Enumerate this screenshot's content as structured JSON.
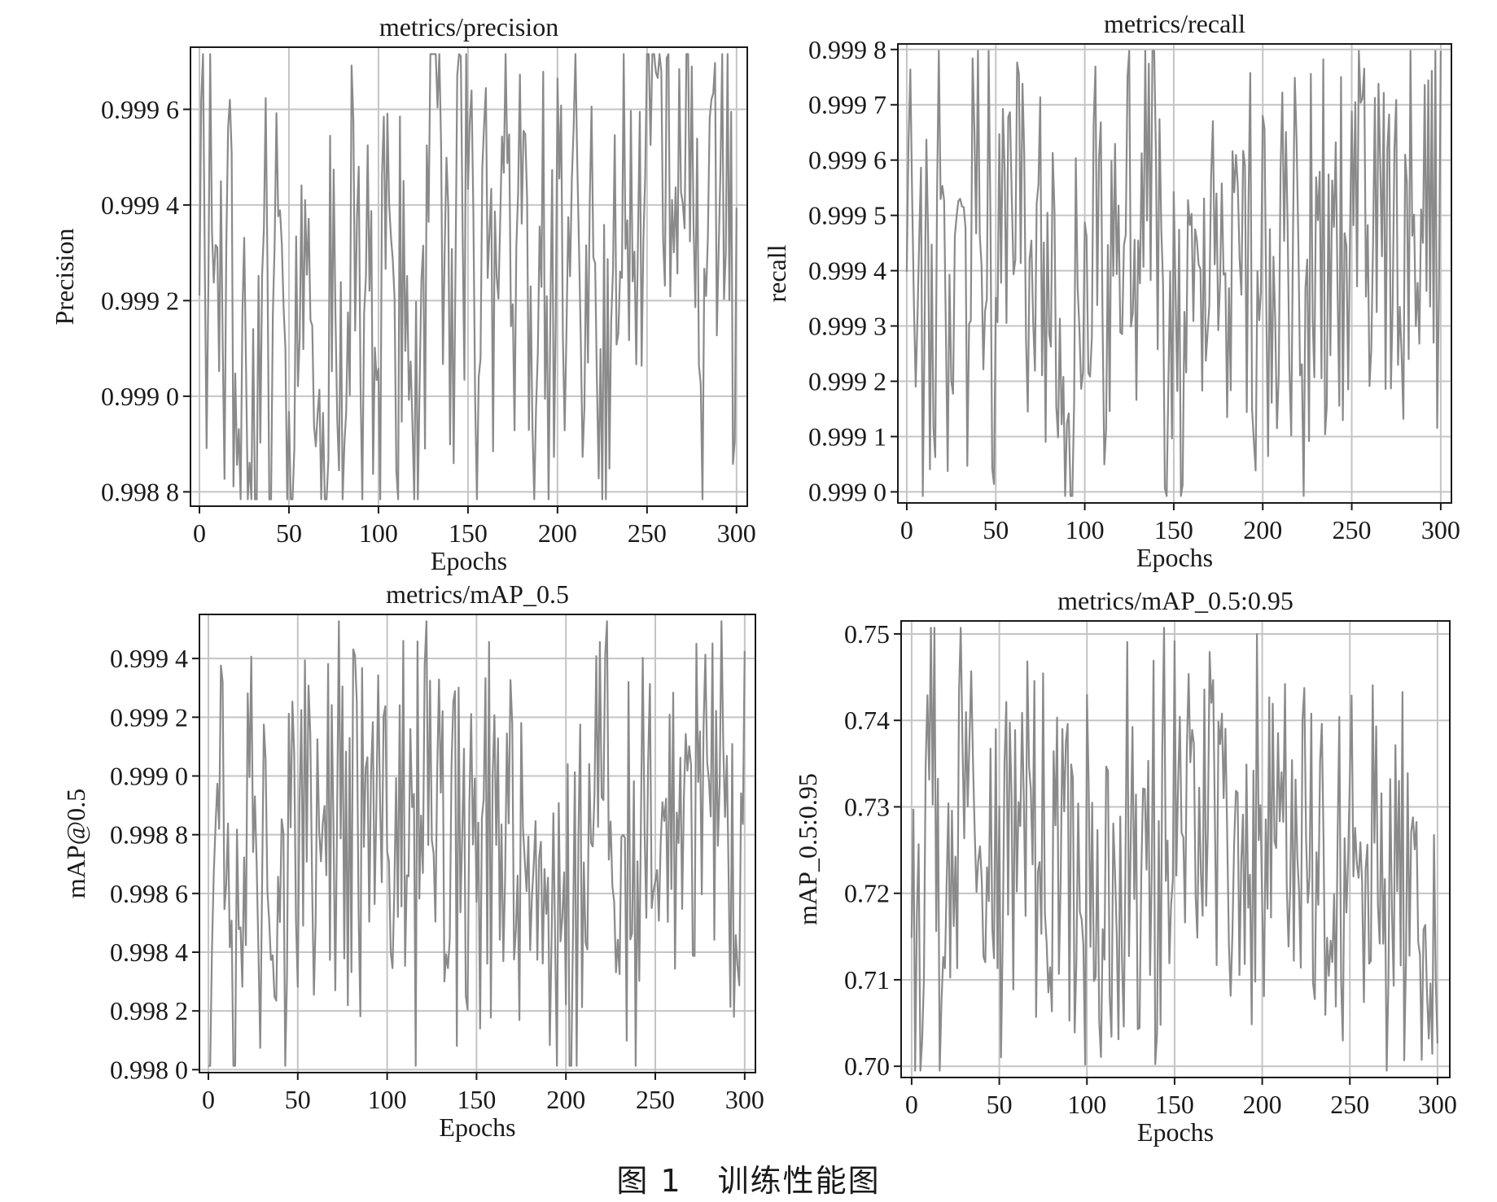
{
  "figure": {
    "caption_number": "图 1",
    "caption_text": "训练性能图"
  },
  "colors": {
    "line": "#8a8a8a",
    "grid": "#c4c4c4",
    "frame": "#1a1a1a",
    "text": "#1a1a1a"
  },
  "chart_data": [
    {
      "type": "line",
      "title": "metrics/precision",
      "xlabel": "Epochs",
      "ylabel": "Precision",
      "xlim": [
        -5,
        306
      ],
      "ylim": [
        0.99877,
        0.99973
      ],
      "x_ticks": [
        0,
        50,
        100,
        150,
        200,
        250,
        300
      ],
      "x_tick_labels": [
        "0",
        "50",
        "100",
        "150",
        "200",
        "250",
        "300"
      ],
      "y_ticks": [
        0.9988,
        0.999,
        0.9992,
        0.9994,
        0.9996
      ],
      "y_tick_labels": [
        "0.998 8",
        "0.999 0",
        "0.999 2",
        "0.999 4",
        "0.999 6"
      ],
      "grid": true,
      "seed": 11,
      "anchors": [
        [
          0,
          0.99939
        ],
        [
          2,
          0.99964
        ],
        [
          4,
          0.99905
        ],
        [
          6,
          0.99962
        ],
        [
          8,
          0.9991
        ],
        [
          10,
          0.99957
        ],
        [
          13,
          0.99895
        ],
        [
          16,
          0.99952
        ],
        [
          19,
          0.99905
        ],
        [
          22,
          0.99885
        ],
        [
          25,
          0.9994
        ],
        [
          28,
          0.99885
        ],
        [
          32,
          0.999
        ],
        [
          36,
          0.99946
        ],
        [
          40,
          0.9988
        ],
        [
          45,
          0.9993
        ],
        [
          50,
          0.99882
        ],
        [
          55,
          0.9991
        ],
        [
          60,
          0.9995
        ],
        [
          65,
          0.9988
        ],
        [
          70,
          0.9989
        ],
        [
          75,
          0.99944
        ],
        [
          80,
          0.99885
        ],
        [
          85,
          0.9996
        ],
        [
          90,
          0.999
        ],
        [
          95,
          0.9993
        ],
        [
          100,
          0.9988
        ],
        [
          105,
          0.9996
        ],
        [
          110,
          0.999
        ],
        [
          115,
          0.9994
        ],
        [
          120,
          0.9988
        ],
        [
          125,
          0.9991
        ],
        [
          130,
          0.99958
        ],
        [
          135,
          0.99965
        ],
        [
          140,
          0.999
        ],
        [
          145,
          0.99963
        ],
        [
          150,
          0.99945
        ],
        [
          155,
          0.9989
        ],
        [
          160,
          0.99958
        ],
        [
          165,
          0.9989
        ],
        [
          170,
          0.9996
        ],
        [
          175,
          0.9992
        ],
        [
          180,
          0.99945
        ],
        [
          185,
          0.9989
        ],
        [
          190,
          0.99956
        ],
        [
          195,
          0.999
        ],
        [
          200,
          0.99961
        ],
        [
          205,
          0.999
        ],
        [
          210,
          0.99946
        ],
        [
          215,
          0.9989
        ],
        [
          220,
          0.9994
        ],
        [
          225,
          0.999
        ],
        [
          230,
          0.9991
        ],
        [
          235,
          0.9995
        ],
        [
          240,
          0.999
        ],
        [
          245,
          0.9993
        ],
        [
          250,
          0.99945
        ],
        [
          255,
          0.9997
        ],
        [
          260,
          0.9992
        ],
        [
          265,
          0.99945
        ],
        [
          270,
          0.9995
        ],
        [
          275,
          0.9996
        ],
        [
          280,
          0.9989
        ],
        [
          285,
          0.9993
        ],
        [
          290,
          0.9994
        ],
        [
          295,
          0.99965
        ],
        [
          298,
          0.9992
        ],
        [
          300,
          0.9992
        ]
      ]
    },
    {
      "type": "line",
      "title": "metrics/recall",
      "xlabel": "Epochs",
      "ylabel": "recall",
      "xlim": [
        -5,
        306
      ],
      "ylim": [
        0.99898,
        0.99981
      ],
      "x_ticks": [
        0,
        50,
        100,
        150,
        200,
        250,
        300
      ],
      "x_tick_labels": [
        "0",
        "50",
        "100",
        "150",
        "200",
        "250",
        "300"
      ],
      "y_ticks": [
        0.999,
        0.9991,
        0.9992,
        0.9993,
        0.9994,
        0.9995,
        0.9996,
        0.9997,
        0.9998
      ],
      "y_tick_labels": [
        "0.999 0",
        "0.999 1",
        "0.999 2",
        "0.999 3",
        "0.999 4",
        "0.999 5",
        "0.999 6",
        "0.999 7",
        "0.999 8"
      ],
      "grid": true,
      "seed": 23,
      "anchors": [
        [
          0,
          0.99955
        ],
        [
          3,
          0.99968
        ],
        [
          5,
          0.99935
        ],
        [
          7,
          0.99978
        ],
        [
          9,
          0.9992
        ],
        [
          12,
          0.9995
        ],
        [
          15,
          0.9991
        ],
        [
          18,
          0.99965
        ],
        [
          22,
          0.99925
        ],
        [
          26,
          0.99945
        ],
        [
          30,
          0.99965
        ],
        [
          34,
          0.9993
        ],
        [
          38,
          0.99955
        ],
        [
          42,
          0.9994
        ],
        [
          46,
          0.9997
        ],
        [
          50,
          0.99915
        ],
        [
          55,
          0.9996
        ],
        [
          60,
          0.9994
        ],
        [
          65,
          0.99975
        ],
        [
          70,
          0.9992
        ],
        [
          75,
          0.9995
        ],
        [
          80,
          0.9993
        ],
        [
          85,
          0.99935
        ],
        [
          90,
          0.9991
        ],
        [
          95,
          0.9995
        ],
        [
          100,
          0.9993
        ],
        [
          105,
          0.9996
        ],
        [
          110,
          0.9992
        ],
        [
          115,
          0.9995
        ],
        [
          120,
          0.9994
        ],
        [
          125,
          0.9996
        ],
        [
          130,
          0.9994
        ],
        [
          135,
          0.99965
        ],
        [
          140,
          0.9995
        ],
        [
          145,
          0.9993
        ],
        [
          150,
          0.9994
        ],
        [
          155,
          0.9992
        ],
        [
          160,
          0.9995
        ],
        [
          165,
          0.9993
        ],
        [
          170,
          0.99945
        ],
        [
          175,
          0.9995
        ],
        [
          180,
          0.9993
        ],
        [
          185,
          0.9996
        ],
        [
          190,
          0.9994
        ],
        [
          195,
          0.9993
        ],
        [
          200,
          0.99955
        ],
        [
          205,
          0.9992
        ],
        [
          210,
          0.9995
        ],
        [
          215,
          0.99935
        ],
        [
          220,
          0.99945
        ],
        [
          225,
          0.9993
        ],
        [
          230,
          0.9995
        ],
        [
          235,
          0.9994
        ],
        [
          240,
          0.9996
        ],
        [
          245,
          0.9993
        ],
        [
          250,
          0.9995
        ],
        [
          255,
          0.9996
        ],
        [
          260,
          0.9994
        ],
        [
          265,
          0.99965
        ],
        [
          270,
          0.99935
        ],
        [
          275,
          0.99955
        ],
        [
          280,
          0.9994
        ],
        [
          285,
          0.9996
        ],
        [
          290,
          0.9993
        ],
        [
          295,
          0.99955
        ],
        [
          300,
          0.9996
        ]
      ]
    },
    {
      "type": "line",
      "title": "metrics/mAP_0.5",
      "xlabel": "Epochs",
      "ylabel": "mAP@0.5",
      "xlim": [
        -5,
        306
      ],
      "ylim": [
        0.99799,
        0.99955
      ],
      "x_ticks": [
        0,
        50,
        100,
        150,
        200,
        250,
        300
      ],
      "x_tick_labels": [
        "0",
        "50",
        "100",
        "150",
        "200",
        "250",
        "300"
      ],
      "y_ticks": [
        0.998,
        0.9982,
        0.9984,
        0.9986,
        0.9988,
        0.999,
        0.9992,
        0.9994
      ],
      "y_tick_labels": [
        "0.998 0",
        "0.998 2",
        "0.998 4",
        "0.998 6",
        "0.998 8",
        "0.999 0",
        "0.999 2",
        "0.999 4"
      ],
      "grid": true,
      "seed": 37,
      "anchors": [
        [
          0,
          0.99805
        ],
        [
          2,
          0.99865
        ],
        [
          4,
          0.9986
        ],
        [
          5,
          0.99945
        ],
        [
          8,
          0.9989
        ],
        [
          11,
          0.999
        ],
        [
          14,
          0.9984
        ],
        [
          18,
          0.9988
        ],
        [
          22,
          0.99885
        ],
        [
          26,
          0.9989
        ],
        [
          30,
          0.9988
        ],
        [
          35,
          0.99875
        ],
        [
          40,
          0.9987
        ],
        [
          45,
          0.9988
        ],
        [
          50,
          0.9988
        ],
        [
          55,
          0.99885
        ],
        [
          60,
          0.99875
        ],
        [
          65,
          0.999
        ],
        [
          70,
          0.9988
        ],
        [
          75,
          0.99885
        ],
        [
          80,
          0.9987
        ],
        [
          85,
          0.9989
        ],
        [
          90,
          0.9988
        ],
        [
          95,
          0.9988
        ],
        [
          100,
          0.9987
        ],
        [
          105,
          0.9989
        ],
        [
          110,
          0.9988
        ],
        [
          115,
          0.99885
        ],
        [
          120,
          0.9987
        ],
        [
          125,
          0.9988
        ],
        [
          130,
          0.99885
        ],
        [
          135,
          0.99875
        ],
        [
          140,
          0.9988
        ],
        [
          145,
          0.9987
        ],
        [
          150,
          0.9986
        ],
        [
          155,
          0.9987
        ],
        [
          160,
          0.9988
        ],
        [
          165,
          0.99875
        ],
        [
          170,
          0.9988
        ],
        [
          175,
          0.9987
        ],
        [
          180,
          0.9988
        ],
        [
          185,
          0.9986
        ],
        [
          190,
          0.9985
        ],
        [
          195,
          0.9984
        ],
        [
          200,
          0.9983
        ],
        [
          205,
          0.9985
        ],
        [
          210,
          0.9988
        ],
        [
          215,
          0.9989
        ],
        [
          220,
          0.9991
        ],
        [
          225,
          0.999
        ],
        [
          230,
          0.9988
        ],
        [
          235,
          0.9989
        ],
        [
          240,
          0.9988
        ],
        [
          245,
          0.9989
        ],
        [
          250,
          0.9988
        ],
        [
          255,
          0.9987
        ],
        [
          260,
          0.9988
        ],
        [
          265,
          0.999
        ],
        [
          270,
          0.9989
        ],
        [
          275,
          0.9988
        ],
        [
          280,
          0.9989
        ],
        [
          285,
          0.9988
        ],
        [
          290,
          0.9987
        ],
        [
          295,
          0.9986
        ],
        [
          300,
          0.9988
        ]
      ]
    },
    {
      "type": "line",
      "title": "metrics/mAP_0.5:0.95",
      "xlabel": "Epochs",
      "ylabel": "mAP_0.5:0.95",
      "xlim": [
        -6,
        307
      ],
      "ylim": [
        0.6987,
        0.7515
      ],
      "x_ticks": [
        0,
        50,
        100,
        150,
        200,
        250,
        300
      ],
      "x_tick_labels": [
        "0",
        "50",
        "100",
        "150",
        "200",
        "250",
        "300"
      ],
      "y_ticks": [
        0.7,
        0.71,
        0.72,
        0.73,
        0.74,
        0.75
      ],
      "y_tick_labels": [
        "0.70",
        "0.71",
        "0.72",
        "0.73",
        "0.74",
        "0.75"
      ],
      "grid": true,
      "seed": 53,
      "anchors": [
        [
          0,
          0.7355
        ],
        [
          2,
          0.714
        ],
        [
          4,
          0.724
        ],
        [
          6,
          0.702
        ],
        [
          8,
          0.73
        ],
        [
          10,
          0.742
        ],
        [
          13,
          0.739
        ],
        [
          16,
          0.725
        ],
        [
          20,
          0.728
        ],
        [
          25,
          0.726
        ],
        [
          30,
          0.724
        ],
        [
          35,
          0.728
        ],
        [
          40,
          0.725
        ],
        [
          45,
          0.723
        ],
        [
          50,
          0.727
        ],
        [
          55,
          0.729
        ],
        [
          60,
          0.726
        ],
        [
          65,
          0.728
        ],
        [
          70,
          0.715
        ],
        [
          75,
          0.718
        ],
        [
          80,
          0.722
        ],
        [
          85,
          0.725
        ],
        [
          90,
          0.72
        ],
        [
          95,
          0.724
        ],
        [
          100,
          0.715
        ],
        [
          105,
          0.72
        ],
        [
          110,
          0.718
        ],
        [
          115,
          0.722
        ],
        [
          120,
          0.719
        ],
        [
          125,
          0.723
        ],
        [
          130,
          0.721
        ],
        [
          135,
          0.725
        ],
        [
          140,
          0.722
        ],
        [
          145,
          0.724
        ],
        [
          150,
          0.728
        ],
        [
          155,
          0.73
        ],
        [
          160,
          0.732
        ],
        [
          165,
          0.734
        ],
        [
          170,
          0.73
        ],
        [
          175,
          0.732
        ],
        [
          180,
          0.726
        ],
        [
          185,
          0.724
        ],
        [
          190,
          0.721
        ],
        [
          195,
          0.718
        ],
        [
          200,
          0.722
        ],
        [
          205,
          0.726
        ],
        [
          210,
          0.732
        ],
        [
          215,
          0.728
        ],
        [
          220,
          0.725
        ],
        [
          225,
          0.727
        ],
        [
          230,
          0.726
        ],
        [
          235,
          0.73
        ],
        [
          240,
          0.723
        ],
        [
          245,
          0.728
        ],
        [
          250,
          0.725
        ],
        [
          255,
          0.726
        ],
        [
          260,
          0.724
        ],
        [
          265,
          0.727
        ],
        [
          270,
          0.723
        ],
        [
          275,
          0.726
        ],
        [
          280,
          0.725
        ],
        [
          285,
          0.724
        ],
        [
          290,
          0.722
        ],
        [
          295,
          0.718
        ],
        [
          300,
          0.72
        ]
      ]
    }
  ]
}
